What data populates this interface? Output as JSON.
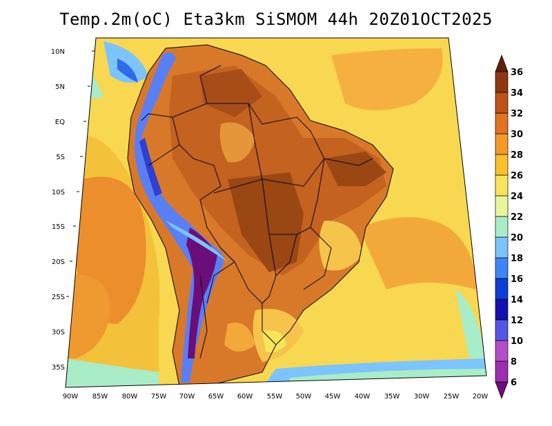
{
  "title": "Temp.2m(oC) Eta3km SiSMOM 44h 20Z01OCT2025",
  "axes": {
    "lat_labels": [
      "10N",
      "5N",
      "EQ",
      "5S",
      "10S",
      "15S",
      "20S",
      "25S",
      "30S",
      "35S"
    ],
    "lon_labels": [
      "90W",
      "85W",
      "80W",
      "75W",
      "70W",
      "65W",
      "60W",
      "55W",
      "50W",
      "45W",
      "40W",
      "35W",
      "30W",
      "25W",
      "20W"
    ]
  },
  "colorbar": {
    "levels": [
      "6",
      "8",
      "10",
      "12",
      "14",
      "16",
      "18",
      "20",
      "22",
      "24",
      "26",
      "28",
      "30",
      "32",
      "34",
      "36"
    ],
    "colors": [
      "#6a0f7a",
      "#9b2fb0",
      "#b24ec8",
      "#5555e6",
      "#1111b0",
      "#0a3fd6",
      "#3d86f5",
      "#7cc4ff",
      "#a9ecc8",
      "#e7f59b",
      "#f8e45a",
      "#f9c02e",
      "#f39a27",
      "#e27322",
      "#bf5218",
      "#8f3710",
      "#5e2208"
    ]
  },
  "colors": {
    "ocean_warm": "#f5cc4a",
    "ocean_hot": "#ee9a30",
    "land_hot": "#c4621f",
    "land_very_hot": "#9a4714",
    "andes_cold": "#3d5ef0",
    "coast_cool": "#7cc4ff"
  }
}
